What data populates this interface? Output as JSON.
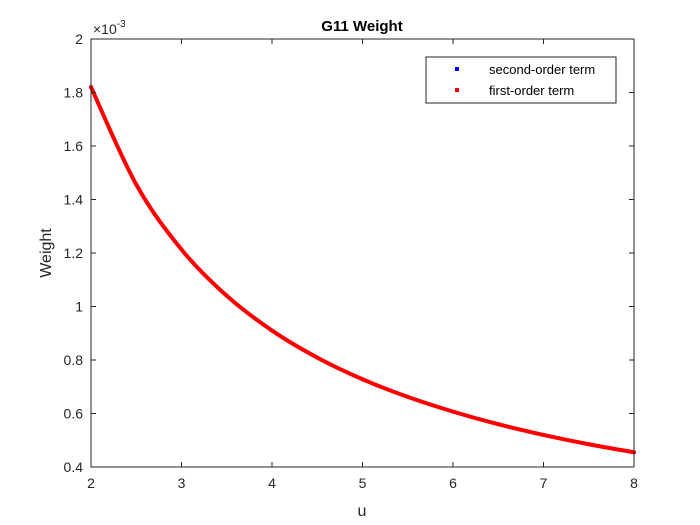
{
  "chart_data": {
    "type": "line",
    "title": "G11 Weight",
    "xlabel": "u",
    "ylabel": "Weight",
    "y_exponent_base": "×10",
    "y_exponent_power": "-3",
    "xlim": [
      2,
      8
    ],
    "ylim": [
      0.4,
      2.0
    ],
    "x_ticks": [
      2,
      3,
      4,
      5,
      6,
      7,
      8
    ],
    "x_tick_labels": [
      "2",
      "3",
      "4",
      "5",
      "6",
      "7",
      "8"
    ],
    "y_ticks": [
      0.4,
      0.6,
      0.8,
      1.0,
      1.2,
      1.4,
      1.6,
      1.8,
      2.0
    ],
    "y_tick_labels": [
      "0.4",
      "0.6",
      "0.8",
      "1",
      "1.2",
      "1.4",
      "1.6",
      "1.8",
      "2"
    ],
    "grid": false,
    "legend_position": "top-right",
    "series": [
      {
        "name": "second-order term",
        "color": "#0000ff",
        "x": [
          2,
          2.5,
          3,
          3.5,
          4,
          4.5,
          5,
          5.5,
          6,
          6.5,
          7,
          7.5,
          8
        ],
        "y": [
          1.82,
          1.456,
          1.213,
          1.04,
          0.91,
          0.809,
          0.728,
          0.662,
          0.607,
          0.56,
          0.52,
          0.485,
          0.455
        ]
      },
      {
        "name": "first-order term",
        "color": "#ff0000",
        "x": [
          2,
          2.5,
          3,
          3.5,
          4,
          4.5,
          5,
          5.5,
          6,
          6.5,
          7,
          7.5,
          8
        ],
        "y": [
          1.82,
          1.456,
          1.213,
          1.04,
          0.91,
          0.809,
          0.728,
          0.662,
          0.607,
          0.56,
          0.52,
          0.485,
          0.455
        ]
      }
    ]
  }
}
